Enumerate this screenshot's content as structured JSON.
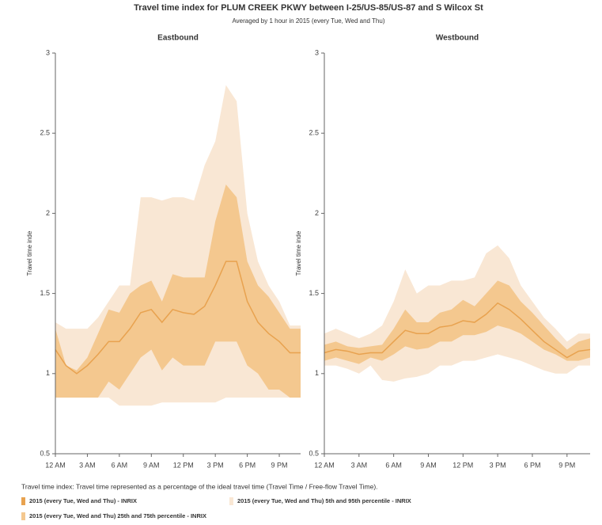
{
  "chart_data": {
    "type": "band",
    "title": "Travel time index for PLUM CREEK PKWY between I-25/US-85/US-87 and S Wilcox St",
    "subtitle": "Averaged by 1 hour in 2015 (every Tue, Wed and Thu)",
    "note": "Travel time index: Travel time represented as a percentage of the ideal travel time (Travel Time / Free-flow Travel Time).",
    "ylabel": "Travel time inde",
    "categories": [
      "12 AM",
      null,
      null,
      "3 AM",
      null,
      null,
      "6 AM",
      null,
      null,
      "9 AM",
      null,
      null,
      "12 PM",
      null,
      null,
      "3 PM",
      null,
      null,
      "6 PM",
      null,
      null,
      "9 PM",
      null,
      null
    ],
    "ylim": [
      0.5,
      3
    ],
    "yticks": [
      0.5,
      1,
      1.5,
      2,
      2.5,
      3
    ],
    "series": [
      {
        "name": "2015 (every Tue, Wed and Thu) - INRIX",
        "color": "#e8a24f"
      },
      {
        "name": "2015 (every Tue, Wed and Thu) 5th and 95th percentile - INRIX",
        "color": "#f9e7d4"
      },
      {
        "name": "2015 (every Tue, Wed and Thu) 25th and 75th percentile - INRIX",
        "color": "#f4c88f"
      }
    ],
    "panels": [
      {
        "title": "Eastbound",
        "median": [
          1.15,
          1.05,
          1.0,
          1.05,
          1.12,
          1.2,
          1.2,
          1.28,
          1.38,
          1.4,
          1.32,
          1.4,
          1.38,
          1.37,
          1.42,
          1.55,
          1.7,
          1.7,
          1.45,
          1.32,
          1.25,
          1.2,
          1.13,
          1.13
        ],
        "p25": [
          0.85,
          0.85,
          0.85,
          0.85,
          0.85,
          0.95,
          0.9,
          1.0,
          1.1,
          1.15,
          1.02,
          1.1,
          1.05,
          1.05,
          1.05,
          1.2,
          1.2,
          1.2,
          1.05,
          1.0,
          0.9,
          0.9,
          0.85,
          0.85
        ],
        "p75": [
          1.28,
          1.05,
          1.02,
          1.1,
          1.25,
          1.4,
          1.38,
          1.5,
          1.55,
          1.58,
          1.45,
          1.62,
          1.6,
          1.6,
          1.6,
          1.95,
          2.18,
          2.1,
          1.7,
          1.55,
          1.48,
          1.38,
          1.28,
          1.28
        ],
        "p5": [
          0.85,
          0.85,
          0.85,
          0.85,
          0.85,
          0.85,
          0.8,
          0.8,
          0.8,
          0.8,
          0.82,
          0.82,
          0.82,
          0.82,
          0.82,
          0.82,
          0.85,
          0.85,
          0.85,
          0.85,
          0.85,
          0.85,
          0.85,
          0.85
        ],
        "p95": [
          1.32,
          1.28,
          1.28,
          1.28,
          1.35,
          1.45,
          1.55,
          1.55,
          2.1,
          2.1,
          2.08,
          2.1,
          2.1,
          2.08,
          2.3,
          2.45,
          2.8,
          2.7,
          2.0,
          1.7,
          1.55,
          1.45,
          1.3,
          1.3
        ]
      },
      {
        "title": "Westbound",
        "median": [
          1.13,
          1.15,
          1.14,
          1.12,
          1.13,
          1.13,
          1.2,
          1.27,
          1.25,
          1.25,
          1.29,
          1.3,
          1.33,
          1.32,
          1.37,
          1.44,
          1.4,
          1.34,
          1.27,
          1.2,
          1.15,
          1.1,
          1.14,
          1.15
        ],
        "p25": [
          1.08,
          1.1,
          1.08,
          1.06,
          1.1,
          1.08,
          1.12,
          1.17,
          1.15,
          1.16,
          1.2,
          1.2,
          1.24,
          1.24,
          1.26,
          1.3,
          1.28,
          1.25,
          1.2,
          1.15,
          1.12,
          1.08,
          1.08,
          1.1
        ],
        "p75": [
          1.18,
          1.2,
          1.17,
          1.16,
          1.17,
          1.18,
          1.28,
          1.4,
          1.32,
          1.32,
          1.38,
          1.4,
          1.46,
          1.42,
          1.5,
          1.58,
          1.55,
          1.45,
          1.38,
          1.3,
          1.22,
          1.15,
          1.2,
          1.22
        ],
        "p5": [
          1.05,
          1.05,
          1.03,
          1.0,
          1.05,
          0.96,
          0.95,
          0.97,
          0.98,
          1.0,
          1.05,
          1.05,
          1.08,
          1.08,
          1.1,
          1.12,
          1.1,
          1.08,
          1.05,
          1.02,
          1.0,
          1.0,
          1.05,
          1.05
        ],
        "p95": [
          1.25,
          1.28,
          1.25,
          1.22,
          1.25,
          1.3,
          1.45,
          1.65,
          1.5,
          1.55,
          1.55,
          1.58,
          1.58,
          1.6,
          1.75,
          1.8,
          1.72,
          1.55,
          1.45,
          1.35,
          1.28,
          1.2,
          1.25,
          1.25
        ]
      }
    ]
  }
}
